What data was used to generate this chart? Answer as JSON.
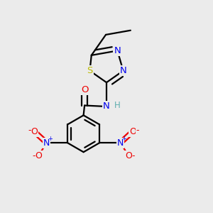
{
  "background_color": "#ebebeb",
  "atom_colors": {
    "C": "#000000",
    "H": "#5fafaf",
    "N": "#0000ee",
    "O": "#ee0000",
    "S": "#bbbb00"
  },
  "bond_color": "#000000",
  "bond_width": 1.6,
  "figsize": [
    3.0,
    3.0
  ],
  "dpi": 100
}
